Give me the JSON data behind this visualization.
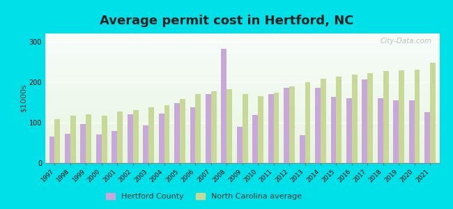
{
  "title": "Average permit cost in Hertford, NC",
  "ylabel": "$1000s",
  "years": [
    1997,
    1998,
    1999,
    2000,
    2001,
    2002,
    2003,
    2004,
    2005,
    2006,
    2007,
    2008,
    2009,
    2010,
    2011,
    2012,
    2013,
    2014,
    2015,
    2016,
    2017,
    2018,
    2019,
    2020,
    2021
  ],
  "hertford_county": [
    65,
    73,
    97,
    70,
    80,
    120,
    93,
    122,
    148,
    138,
    170,
    282,
    90,
    118,
    170,
    185,
    68,
    185,
    163,
    160,
    207,
    160,
    155,
    155,
    125
  ],
  "nc_average": [
    108,
    117,
    120,
    117,
    128,
    130,
    138,
    142,
    158,
    170,
    178,
    183,
    170,
    165,
    173,
    190,
    200,
    208,
    213,
    218,
    222,
    227,
    228,
    230,
    248
  ],
  "hertford_color": "#c8a8d8",
  "nc_color": "#c8d898",
  "background_color": "#00e0e8",
  "ylim": [
    0,
    320
  ],
  "yticks": [
    0,
    100,
    200,
    300
  ],
  "bar_width": 0.35,
  "legend_hertford": "Hertford County",
  "legend_nc": "North Carolina average",
  "title_fontsize": 13,
  "watermark": "City-Data.com",
  "title_color": "#222222"
}
